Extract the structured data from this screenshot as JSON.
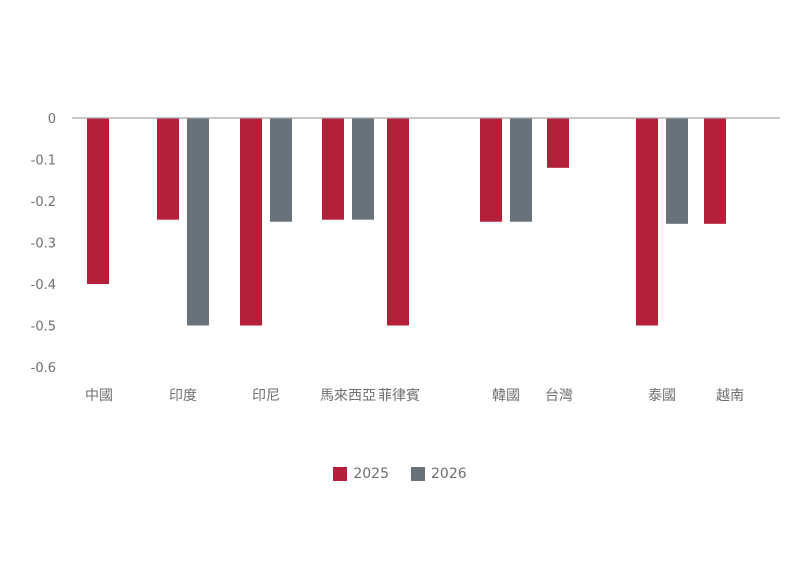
{
  "chart_data": {
    "type": "bar",
    "categories": [
      "中國",
      "印度",
      "印尼",
      "馬來西亞",
      "菲律賓",
      "韓國",
      "台灣",
      "泰國",
      "越南"
    ],
    "series": [
      {
        "name": "2025",
        "color": "#b41f3a",
        "values": [
          -0.4,
          -0.245,
          -0.5,
          -0.245,
          -0.5,
          -0.25,
          -0.12,
          -0.5,
          -0.255
        ]
      },
      {
        "name": "2026",
        "color": "#67727b",
        "values": [
          null,
          -0.5,
          -0.25,
          -0.245,
          null,
          -0.25,
          null,
          -0.255,
          null
        ]
      }
    ],
    "yticks": [
      "0",
      "-0.1",
      "-0.2",
      "-0.3",
      "-0.4",
      "-0.5",
      "-0.6"
    ],
    "ylim": [
      -0.6,
      0
    ],
    "legend_position": "bottom-center",
    "grid": false
  }
}
